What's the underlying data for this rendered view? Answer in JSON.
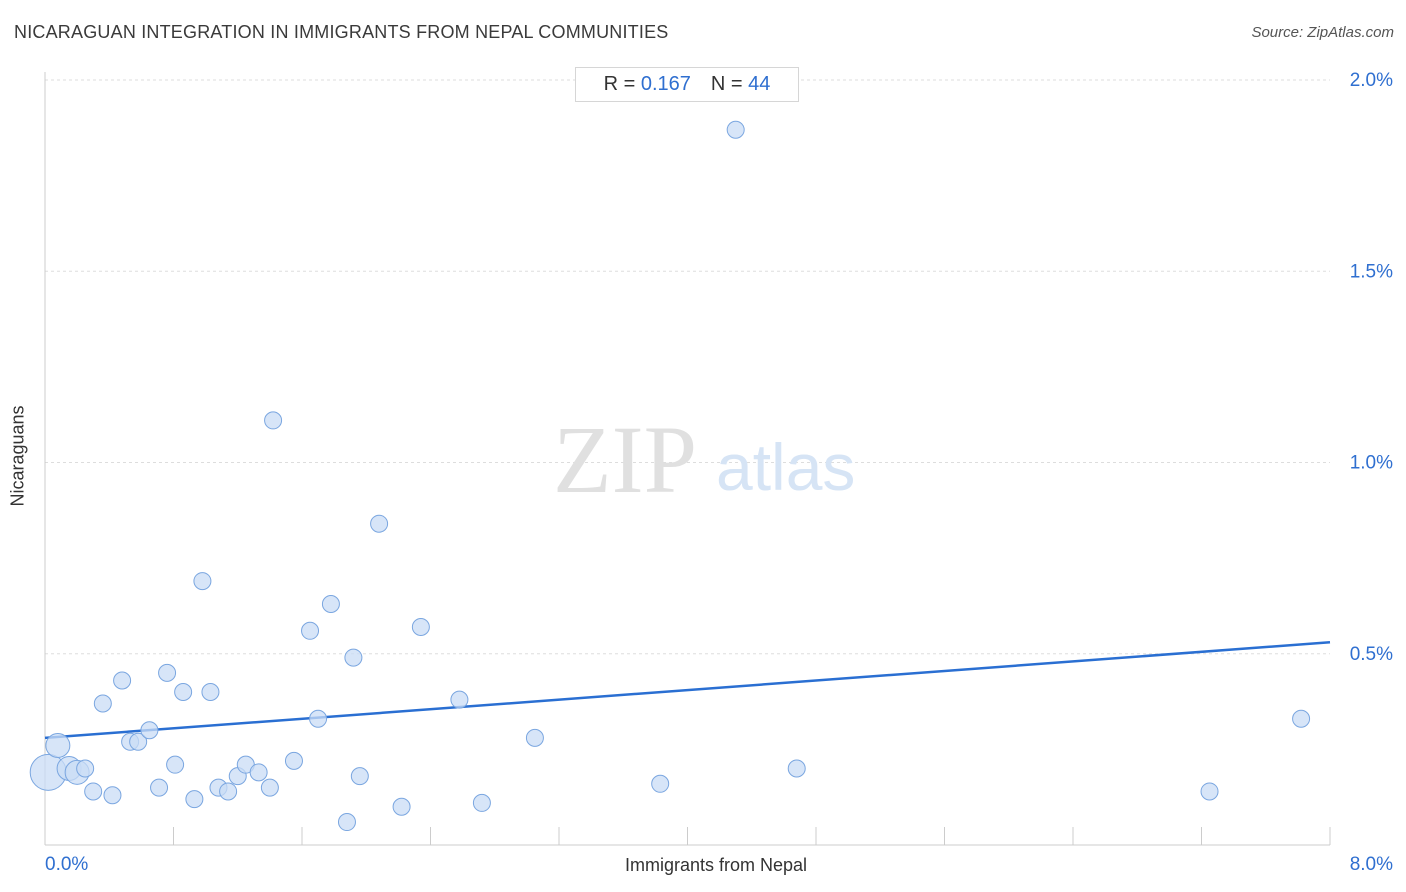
{
  "header": {
    "title": "NICARAGUAN INTEGRATION IN IMMIGRANTS FROM NEPAL COMMUNITIES",
    "source": "Source: ZipAtlas.com"
  },
  "stats": {
    "r_label": "R =",
    "r_value": "0.167",
    "n_label": "N =",
    "n_value": "44"
  },
  "watermark": {
    "zip": "ZIP",
    "atlas": "atlas"
  },
  "colors": {
    "accent": "#2f6fd0",
    "point_fill": "#c9dcf5",
    "point_stroke": "#7aa6e0",
    "trend": "#2a6fd2",
    "grid": "#dddddd"
  },
  "chart_data": {
    "type": "scatter",
    "xlabel": "Immigrants from Nepal",
    "ylabel": "Nicaraguans",
    "xlim": [
      0,
      8
    ],
    "ylim": [
      0,
      2.05
    ],
    "x_tick_labels": [
      {
        "value": 0,
        "label": "0.0%"
      },
      {
        "value": 8,
        "label": "8.0%"
      }
    ],
    "y_tick_labels": [
      {
        "value": 0.5,
        "label": "0.5%"
      },
      {
        "value": 1.0,
        "label": "1.0%"
      },
      {
        "value": 1.5,
        "label": "1.5%"
      },
      {
        "value": 2.0,
        "label": "2.0%"
      }
    ],
    "grid": true,
    "trendline": {
      "x": [
        0,
        8
      ],
      "y": [
        0.28,
        0.53
      ]
    },
    "points": [
      {
        "x": 0.02,
        "y": 0.19,
        "size": "large"
      },
      {
        "x": 0.08,
        "y": 0.26,
        "size": "medium"
      },
      {
        "x": 0.15,
        "y": 0.2,
        "size": "medium"
      },
      {
        "x": 0.2,
        "y": 0.19,
        "size": "medium"
      },
      {
        "x": 0.25,
        "y": 0.2,
        "size": "small"
      },
      {
        "x": 0.3,
        "y": 0.14,
        "size": "small"
      },
      {
        "x": 0.36,
        "y": 0.37,
        "size": "small"
      },
      {
        "x": 0.42,
        "y": 0.13,
        "size": "small"
      },
      {
        "x": 0.48,
        "y": 0.43,
        "size": "small"
      },
      {
        "x": 0.53,
        "y": 0.27,
        "size": "small"
      },
      {
        "x": 0.58,
        "y": 0.27,
        "size": "small"
      },
      {
        "x": 0.65,
        "y": 0.3,
        "size": "small"
      },
      {
        "x": 0.71,
        "y": 0.15,
        "size": "small"
      },
      {
        "x": 0.76,
        "y": 0.45,
        "size": "small"
      },
      {
        "x": 0.81,
        "y": 0.21,
        "size": "small"
      },
      {
        "x": 0.86,
        "y": 0.4,
        "size": "small"
      },
      {
        "x": 0.93,
        "y": 0.12,
        "size": "small"
      },
      {
        "x": 0.98,
        "y": 0.69,
        "size": "small"
      },
      {
        "x": 1.03,
        "y": 0.4,
        "size": "small"
      },
      {
        "x": 1.08,
        "y": 0.15,
        "size": "small"
      },
      {
        "x": 1.14,
        "y": 0.14,
        "size": "small"
      },
      {
        "x": 1.2,
        "y": 0.18,
        "size": "small"
      },
      {
        "x": 1.25,
        "y": 0.21,
        "size": "small"
      },
      {
        "x": 1.33,
        "y": 0.19,
        "size": "small"
      },
      {
        "x": 1.4,
        "y": 0.15,
        "size": "small"
      },
      {
        "x": 1.42,
        "y": 1.11,
        "size": "small"
      },
      {
        "x": 1.55,
        "y": 0.22,
        "size": "small"
      },
      {
        "x": 1.65,
        "y": 0.56,
        "size": "small"
      },
      {
        "x": 1.7,
        "y": 0.33,
        "size": "small"
      },
      {
        "x": 1.78,
        "y": 0.63,
        "size": "small"
      },
      {
        "x": 1.88,
        "y": 0.06,
        "size": "small"
      },
      {
        "x": 1.92,
        "y": 0.49,
        "size": "small"
      },
      {
        "x": 1.96,
        "y": 0.18,
        "size": "small"
      },
      {
        "x": 2.08,
        "y": 0.84,
        "size": "small"
      },
      {
        "x": 2.22,
        "y": 0.1,
        "size": "small"
      },
      {
        "x": 2.34,
        "y": 0.57,
        "size": "small"
      },
      {
        "x": 2.58,
        "y": 0.38,
        "size": "small"
      },
      {
        "x": 2.72,
        "y": 0.11,
        "size": "small"
      },
      {
        "x": 3.05,
        "y": 0.28,
        "size": "small"
      },
      {
        "x": 3.83,
        "y": 0.16,
        "size": "small"
      },
      {
        "x": 4.3,
        "y": 1.87,
        "size": "small"
      },
      {
        "x": 4.68,
        "y": 0.2,
        "size": "small"
      },
      {
        "x": 7.25,
        "y": 0.14,
        "size": "small"
      },
      {
        "x": 7.82,
        "y": 0.33,
        "size": "small"
      }
    ]
  }
}
